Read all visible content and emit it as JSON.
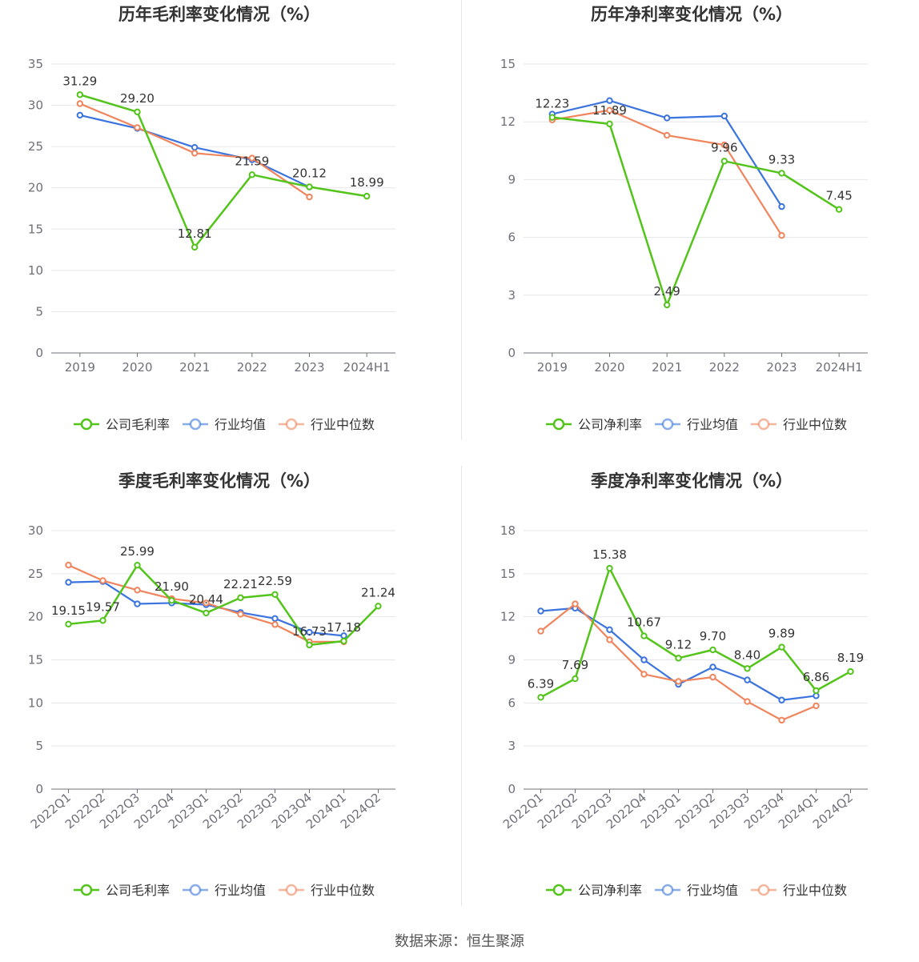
{
  "source_note": "数据来源：恒生聚源",
  "colors": {
    "company": "#52c41a",
    "avg": "#3b74de",
    "median": "#f0845c",
    "grid": "#e6e6ea",
    "axis": "#6e7079",
    "text": "#333333"
  },
  "legend": [
    "行业均值",
    "行业中位数"
  ],
  "chart_data": [
    {
      "type": "line",
      "title": "历年毛利率变化情况（%）",
      "categories": [
        "2019",
        "2020",
        "2021",
        "2022",
        "2023",
        "2024H1"
      ],
      "y_ticks": [
        0,
        5,
        10,
        15,
        20,
        25,
        30,
        35
      ],
      "ylim": [
        0,
        35
      ],
      "series": [
        {
          "name": "公司毛利率",
          "role": "company",
          "values": [
            31.29,
            29.2,
            12.81,
            21.59,
            20.12,
            18.99
          ],
          "labels": [
            "31.29",
            "29.20",
            "12.81",
            "21.59",
            "20.12",
            "18.99"
          ]
        },
        {
          "name": "行业均值",
          "role": "avg",
          "values": [
            28.8,
            27.2,
            24.9,
            23.4,
            20.1,
            null
          ]
        },
        {
          "name": "行业中位数",
          "role": "median",
          "values": [
            30.2,
            27.3,
            24.2,
            23.6,
            18.9,
            null
          ]
        }
      ]
    },
    {
      "type": "line",
      "title": "历年净利率变化情况（%）",
      "categories": [
        "2019",
        "2020",
        "2021",
        "2022",
        "2023",
        "2024H1"
      ],
      "y_ticks": [
        0,
        3,
        6,
        9,
        12,
        15
      ],
      "ylim": [
        0,
        15
      ],
      "series": [
        {
          "name": "公司净利率",
          "role": "company",
          "values": [
            12.23,
            11.89,
            2.49,
            9.96,
            9.33,
            7.45
          ],
          "labels": [
            "12.23",
            "11.89",
            "2.49",
            "9.96",
            "9.33",
            "7.45"
          ]
        },
        {
          "name": "行业均值",
          "role": "avg",
          "values": [
            12.4,
            13.1,
            12.2,
            12.3,
            7.6,
            null
          ]
        },
        {
          "name": "行业中位数",
          "role": "median",
          "values": [
            12.1,
            12.6,
            11.3,
            10.8,
            6.1,
            null
          ]
        }
      ]
    },
    {
      "type": "line",
      "title": "季度毛利率变化情况（%）",
      "categories": [
        "2022Q1",
        "2022Q2",
        "2022Q3",
        "2022Q4",
        "2023Q1",
        "2023Q2",
        "2023Q3",
        "2023Q4",
        "2024Q1",
        "2024Q2"
      ],
      "rotate_x_labels": true,
      "y_ticks": [
        0,
        5,
        10,
        15,
        20,
        25,
        30
      ],
      "ylim": [
        0,
        30
      ],
      "series": [
        {
          "name": "公司毛利率",
          "role": "company",
          "values": [
            19.15,
            19.57,
            25.99,
            21.9,
            20.44,
            22.21,
            22.59,
            16.73,
            17.18,
            21.24
          ],
          "labels": [
            "19.15",
            "19.57",
            "25.99",
            "21.90",
            "20.44",
            "22.21",
            "22.59",
            "16.73",
            "17.18",
            "21.24"
          ]
        },
        {
          "name": "行业均值",
          "role": "avg",
          "values": [
            24.0,
            24.1,
            21.5,
            21.6,
            21.4,
            20.5,
            19.8,
            18.2,
            17.8,
            null
          ]
        },
        {
          "name": "行业中位数",
          "role": "median",
          "values": [
            26.0,
            24.2,
            23.1,
            22.1,
            21.6,
            20.3,
            19.1,
            17.1,
            17.1,
            null
          ]
        }
      ]
    },
    {
      "type": "line",
      "title": "季度净利率变化情况（%）",
      "categories": [
        "2022Q1",
        "2022Q2",
        "2022Q3",
        "2022Q4",
        "2023Q1",
        "2023Q2",
        "2023Q3",
        "2023Q4",
        "2024Q1",
        "2024Q2"
      ],
      "rotate_x_labels": true,
      "y_ticks": [
        0,
        3,
        6,
        9,
        12,
        15,
        18
      ],
      "ylim": [
        0,
        18
      ],
      "series": [
        {
          "name": "公司净利率",
          "role": "company",
          "values": [
            6.39,
            7.69,
            15.38,
            10.67,
            9.12,
            9.7,
            8.4,
            9.89,
            6.86,
            8.19
          ],
          "labels": [
            "6.39",
            "7.69",
            "15.38",
            "10.67",
            "9.12",
            "9.70",
            "8.40",
            "9.89",
            "6.86",
            "8.19"
          ]
        },
        {
          "name": "行业均值",
          "role": "avg",
          "values": [
            12.4,
            12.6,
            11.1,
            9.0,
            7.3,
            8.5,
            7.6,
            6.2,
            6.5,
            null
          ]
        },
        {
          "name": "行业中位数",
          "role": "median",
          "values": [
            11.0,
            12.9,
            10.4,
            8.0,
            7.5,
            7.8,
            6.1,
            4.8,
            5.8,
            null
          ]
        }
      ]
    }
  ]
}
